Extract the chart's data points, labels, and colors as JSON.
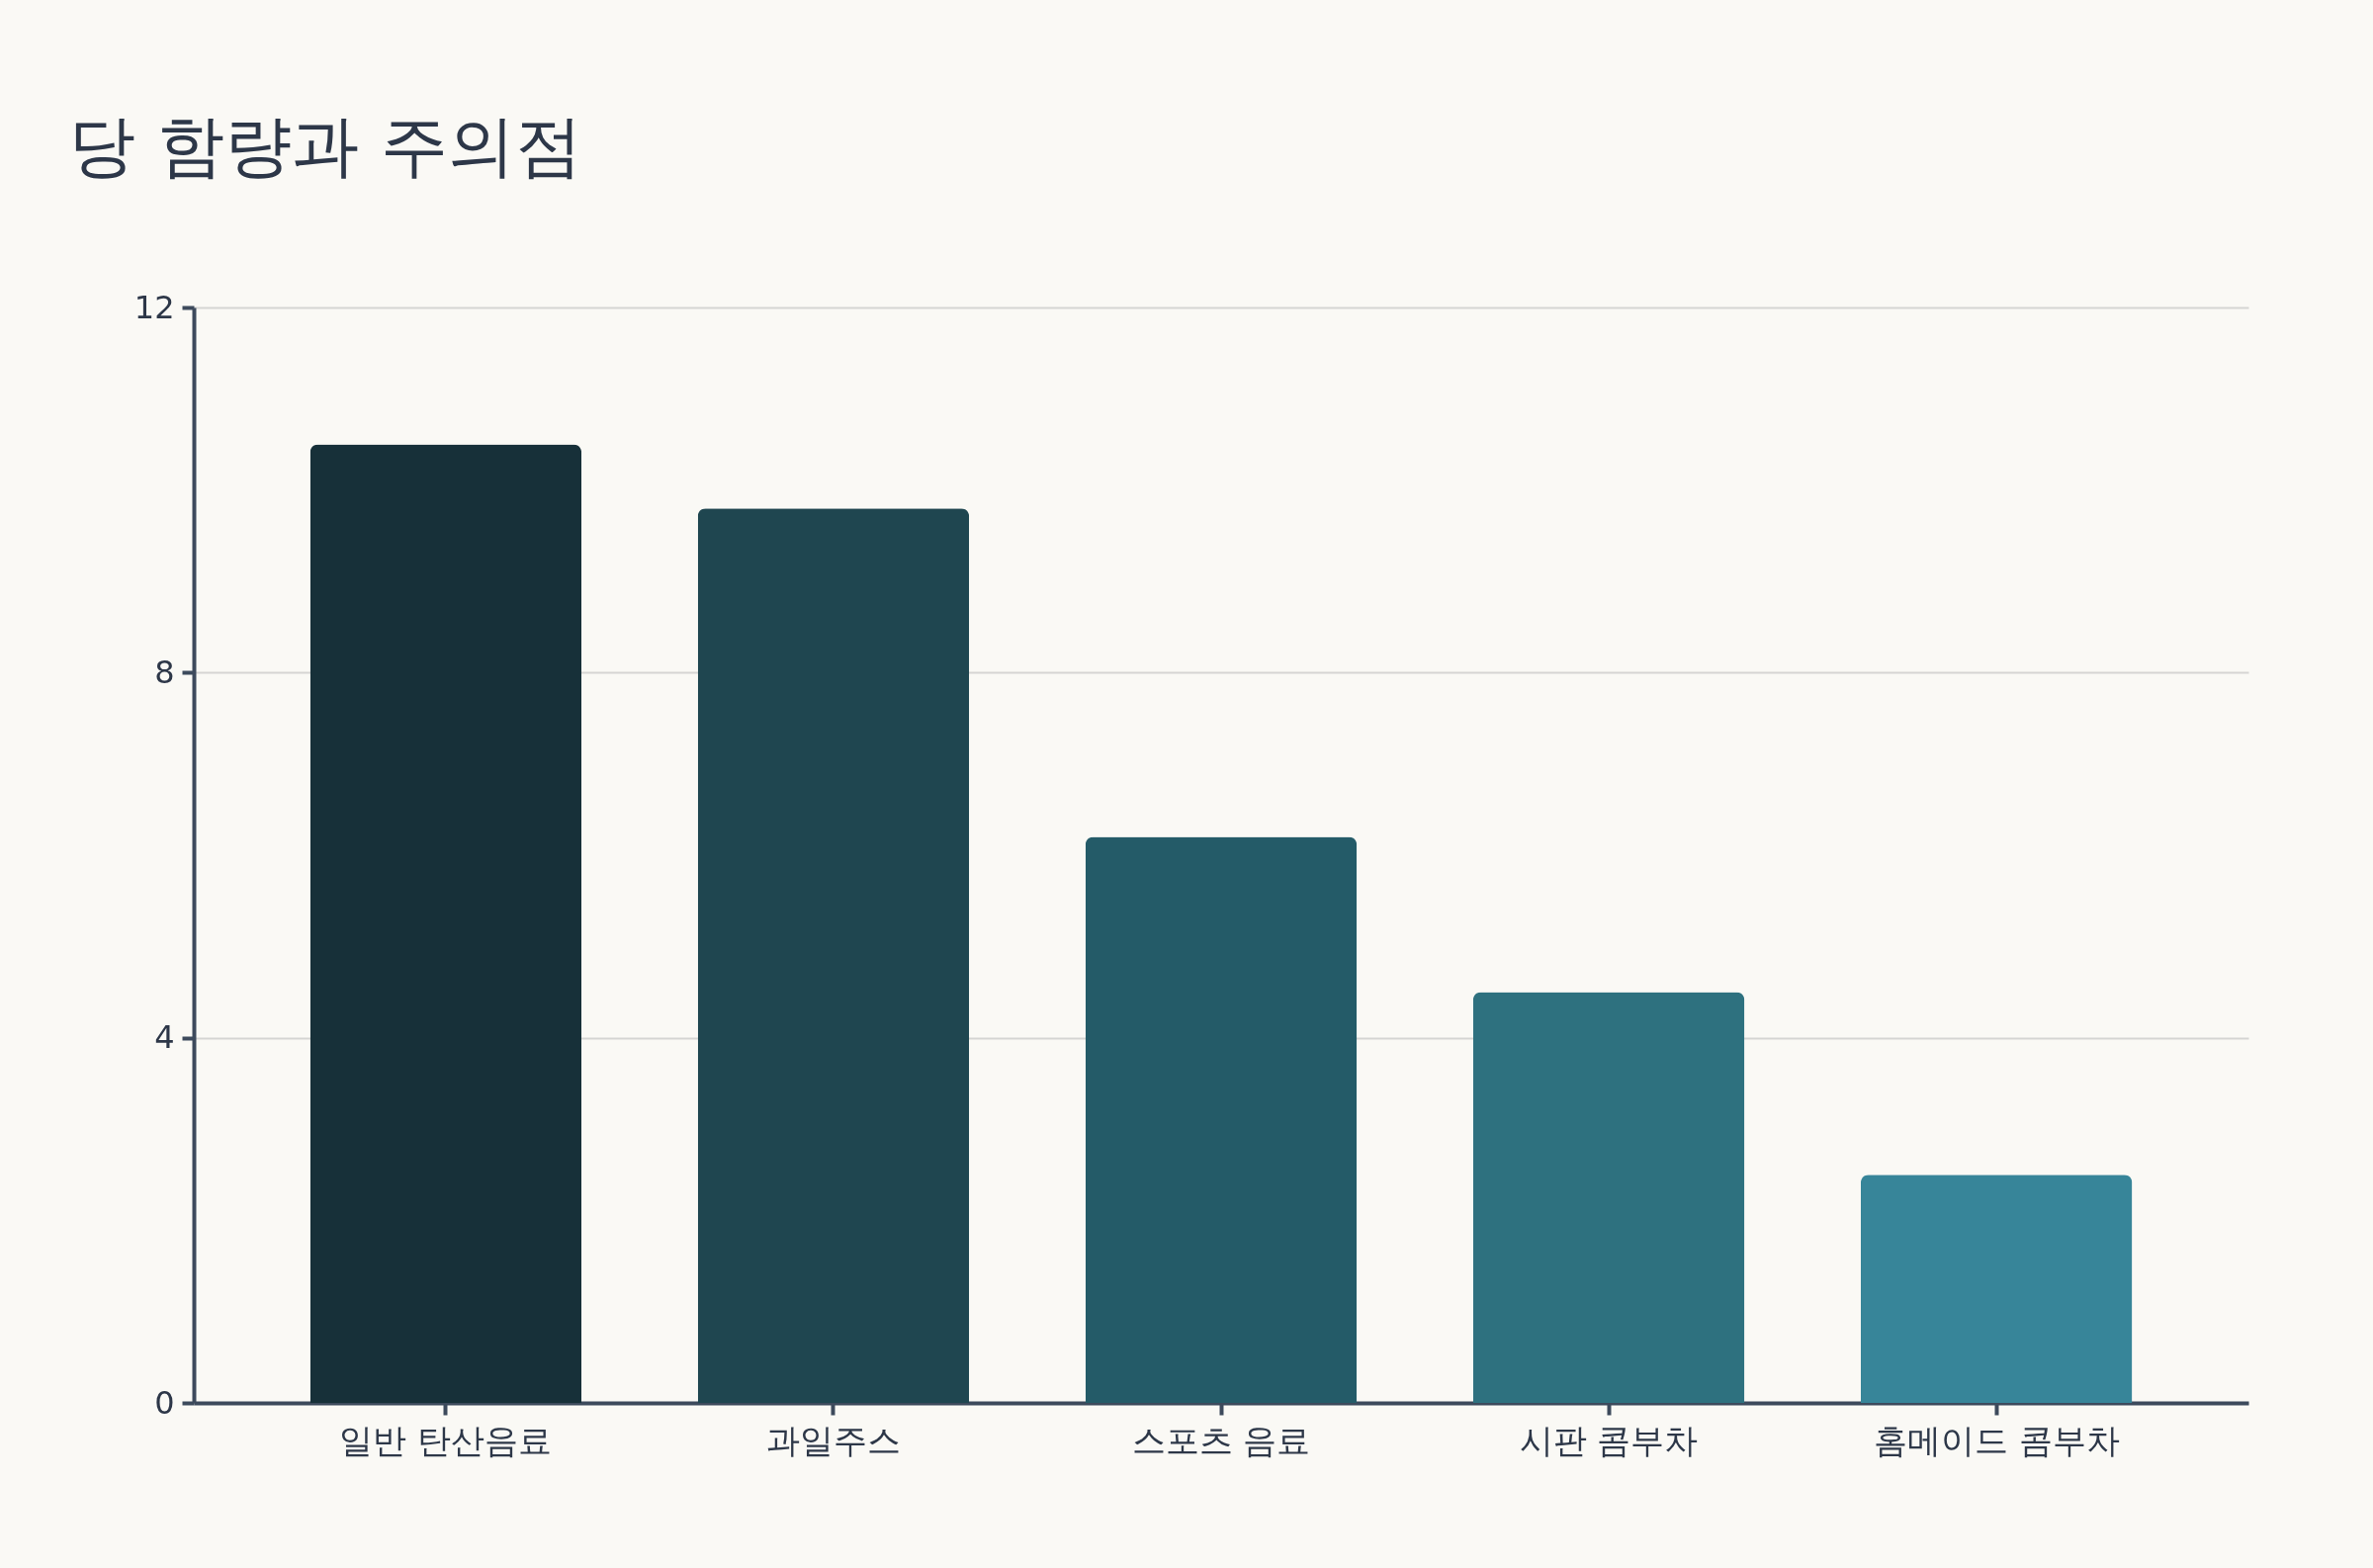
{
  "chart_data": {
    "type": "bar",
    "title": "당 함량과 주의점",
    "categories": [
      "일반 탄산음료",
      "과일주스",
      "스포츠 음료",
      "시판 콤부차",
      "홈메이드 콤부차"
    ],
    "values": [
      10.5,
      9.8,
      6.2,
      4.5,
      2.5
    ],
    "colors": [
      "#173039",
      "#1f4650",
      "#245b68",
      "#2e717f",
      "#378599"
    ],
    "ylim": [
      0,
      12
    ],
    "yticks": [
      0,
      4,
      8,
      12
    ],
    "grid": "y"
  }
}
